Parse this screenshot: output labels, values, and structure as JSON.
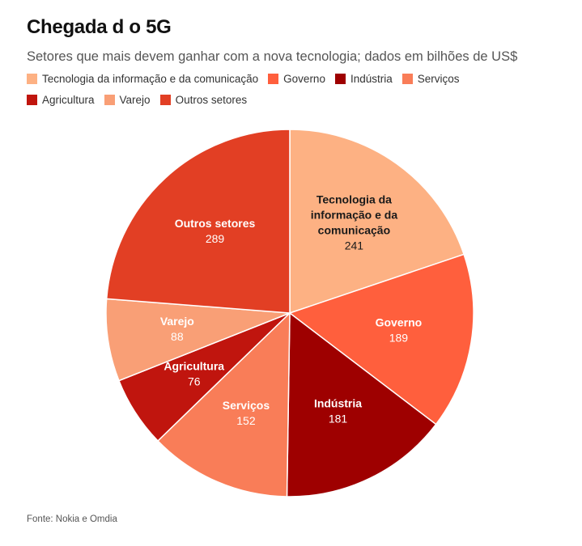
{
  "title": "Chegada d o 5G",
  "subtitle": "Setores que mais devem ganhar com a nova tecnologia; dados em bilhões de US$",
  "source": "Fonte: Nokia e Omdia",
  "chart_data": {
    "type": "pie",
    "title": "Chegada d o 5G",
    "subtitle": "Setores que mais devem ganhar com a nova tecnologia; dados em bilhões de US$",
    "legend_placement": "top",
    "slices": [
      {
        "label": "Tecnologia da informação e da comunicação",
        "chart_label_lines": [
          "Tecnologia da",
          "informação e da",
          "comunicação"
        ],
        "value": 241,
        "color": "#fdb183",
        "label_color": "#1a1a1a"
      },
      {
        "label": "Governo",
        "chart_label_lines": [
          "Governo"
        ],
        "value": 189,
        "color": "#ff5f3d",
        "label_color": "#ffffff"
      },
      {
        "label": "Indústria",
        "chart_label_lines": [
          "Indústria"
        ],
        "value": 181,
        "color": "#9e0000",
        "label_color": "#ffffff"
      },
      {
        "label": "Serviços",
        "chart_label_lines": [
          "Serviços"
        ],
        "value": 152,
        "color": "#f97d58",
        "label_color": "#ffffff"
      },
      {
        "label": "Agricultura",
        "chart_label_lines": [
          "Agricultura"
        ],
        "value": 76,
        "color": "#c0150e",
        "label_color": "#ffffff"
      },
      {
        "label": "Varejo",
        "chart_label_lines": [
          "Varejo"
        ],
        "value": 88,
        "color": "#f99f76",
        "label_color": "#ffffff"
      },
      {
        "label": "Outros setores",
        "chart_label_lines": [
          "Outros setores"
        ],
        "value": 289,
        "color": "#e23f24",
        "label_color": "#ffffff"
      }
    ]
  }
}
